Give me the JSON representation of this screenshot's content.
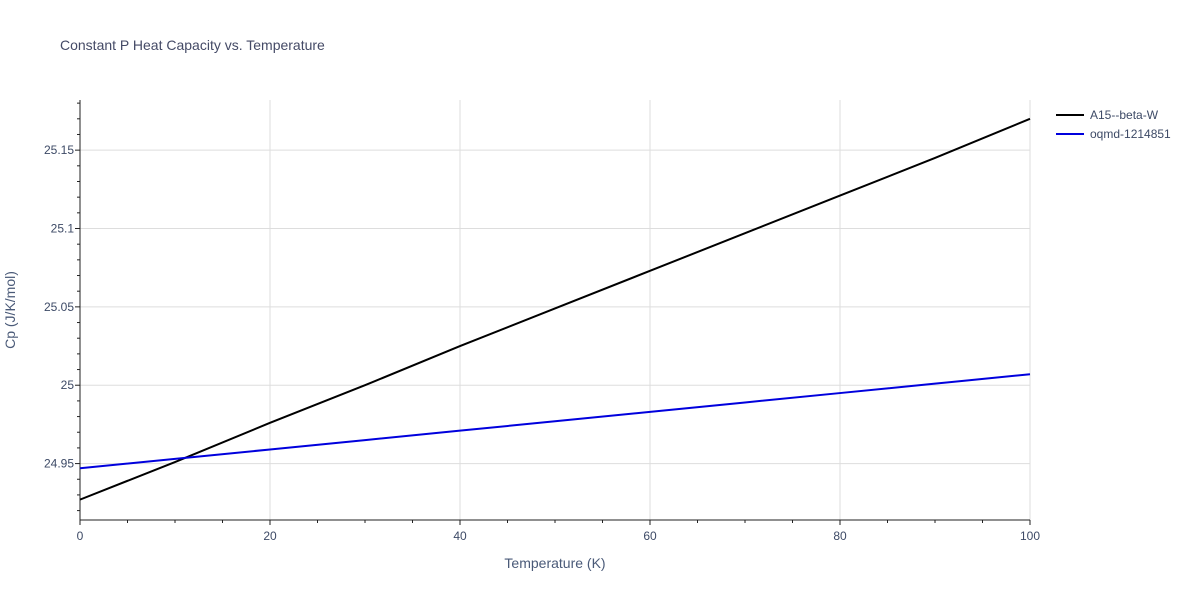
{
  "chart_data": {
    "type": "line",
    "title": "Constant P Heat Capacity vs. Temperature",
    "xlabel": "Temperature (K)",
    "ylabel": "Cp (J/K/mol)",
    "xlim": [
      0,
      100
    ],
    "ylim": [
      24.914,
      25.182
    ],
    "x_ticks": [
      0,
      20,
      40,
      60,
      80,
      100
    ],
    "x_tick_labels": [
      "0",
      "20",
      "40",
      "60",
      "80",
      "100"
    ],
    "y_ticks": [
      24.95,
      25,
      25.05,
      25.1,
      25.15
    ],
    "y_tick_labels": [
      "24.95",
      "25",
      "25.05",
      "25.1",
      "25.15"
    ],
    "grid": true,
    "legend_position": "top-right",
    "series": [
      {
        "name": "A15--beta-W",
        "color": "#000000",
        "x": [
          0,
          10,
          20,
          30,
          40,
          50,
          60,
          70,
          80,
          90,
          100
        ],
        "y": [
          24.927,
          24.951,
          24.976,
          25.0,
          25.025,
          25.049,
          25.073,
          25.097,
          25.121,
          25.145,
          25.17
        ]
      },
      {
        "name": "oqmd-1214851",
        "color": "#0000dd",
        "x": [
          0,
          10,
          20,
          30,
          40,
          50,
          60,
          70,
          80,
          90,
          100
        ],
        "y": [
          24.947,
          24.953,
          24.959,
          24.965,
          24.971,
          24.977,
          24.983,
          24.989,
          24.995,
          25.001,
          25.007
        ]
      }
    ]
  }
}
